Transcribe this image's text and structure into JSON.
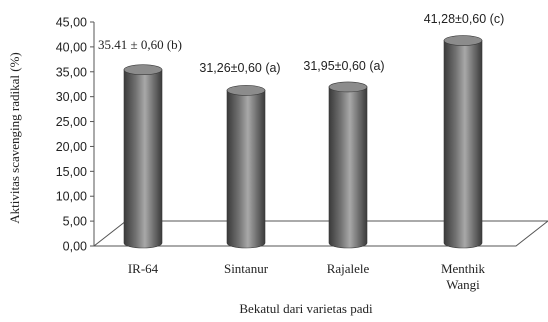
{
  "chart_data": {
    "type": "bar",
    "style": "3d-cylinder",
    "categories": [
      [
        "IR-64"
      ],
      [
        "Sintanur"
      ],
      [
        "Rajalele"
      ],
      [
        "Menthik",
        "Wangi"
      ]
    ],
    "values": [
      35.41,
      31.26,
      31.95,
      41.28
    ],
    "data_labels": [
      "35.41 ± 0,60 (b)",
      "31,26±0,60 (a)",
      "31,95±0,60 (a)",
      "41,28±0,60 (c)"
    ],
    "xlabel": "Bekatul dari varietas padi",
    "ylabel": "Aktivitas scavenging radikal (%)",
    "ylim": [
      0,
      45
    ],
    "yticks": [
      "0,00",
      "5,00",
      "10,00",
      "15,00",
      "20,00",
      "25,00",
      "30,00",
      "35,00",
      "40,00",
      "45,00"
    ],
    "grid": false,
    "legend": "none",
    "colors": {
      "bar_body": "#707070",
      "bar_dark": "#3a3a3a",
      "bar_light": "#a8a8a8",
      "axis": "#555555"
    }
  }
}
